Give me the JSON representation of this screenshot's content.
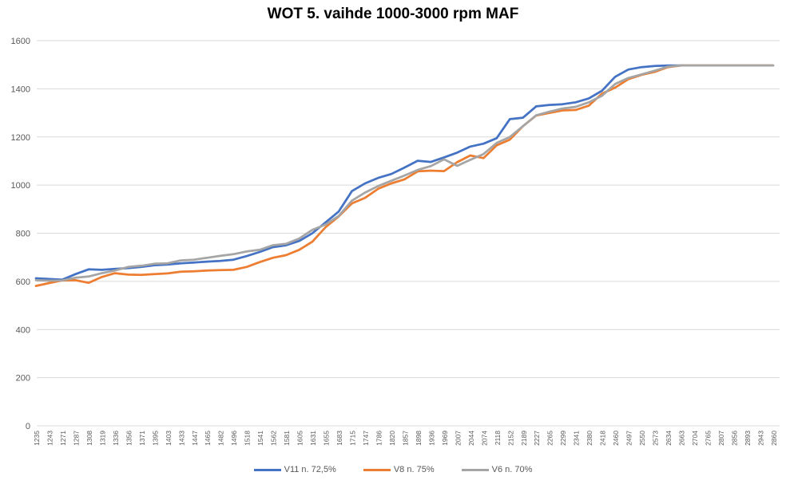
{
  "chart_data": {
    "type": "line",
    "title": "WOT 5. vaihde 1000-3000 rpm MAF",
    "xlabel": "",
    "ylabel": "",
    "ylim": [
      0,
      1600
    ],
    "ytick_step": 200,
    "grid": true,
    "legend_position": "bottom",
    "categories": [
      1235,
      1243,
      1271,
      1287,
      1308,
      1319,
      1336,
      1356,
      1371,
      1395,
      1403,
      1433,
      1447,
      1465,
      1482,
      1496,
      1518,
      1541,
      1562,
      1581,
      1605,
      1631,
      1655,
      1683,
      1715,
      1747,
      1786,
      1820,
      1857,
      1898,
      1936,
      1969,
      2007,
      2044,
      2074,
      2118,
      2152,
      2189,
      2227,
      2265,
      2299,
      2341,
      2380,
      2418,
      2460,
      2497,
      2550,
      2573,
      2634,
      2663,
      2704,
      2765,
      2807,
      2856,
      2893,
      2943,
      2860
    ],
    "series": [
      {
        "name": "V11 n. 72,5%",
        "color": "#4472C4",
        "values": [
          613,
          610,
          607,
          630,
          650,
          648,
          652,
          655,
          660,
          667,
          670,
          675,
          678,
          682,
          685,
          690,
          705,
          722,
          742,
          750,
          768,
          800,
          845,
          890,
          975,
          1007,
          1030,
          1046,
          1073,
          1101,
          1096,
          1115,
          1135,
          1160,
          1172,
          1195,
          1274,
          1280,
          1327,
          1333,
          1336,
          1344,
          1360,
          1392,
          1450,
          1480,
          1490,
          1495,
          1497,
          1497,
          1497,
          1497,
          1497,
          1497,
          1497,
          1497,
          1497
        ]
      },
      {
        "name": "V8 n. 75%",
        "color": "#ED7D31",
        "values": [
          581,
          593,
          604,
          605,
          594,
          618,
          634,
          628,
          627,
          630,
          633,
          640,
          642,
          645,
          647,
          648,
          660,
          680,
          698,
          709,
          731,
          765,
          825,
          870,
          924,
          947,
          985,
          1007,
          1024,
          1057,
          1060,
          1058,
          1095,
          1123,
          1112,
          1165,
          1189,
          1245,
          1289,
          1300,
          1310,
          1312,
          1330,
          1380,
          1405,
          1440,
          1458,
          1470,
          1490,
          1497,
          1497,
          1497,
          1497,
          1497,
          1497,
          1497,
          1497
        ]
      },
      {
        "name": "V6 n. 70%",
        "color": "#A5A5A5",
        "values": [
          605,
          603,
          604,
          615,
          620,
          634,
          645,
          660,
          665,
          673,
          675,
          687,
          690,
          698,
          706,
          713,
          724,
          731,
          750,
          756,
          778,
          814,
          836,
          872,
          935,
          969,
          996,
          1018,
          1040,
          1063,
          1079,
          1107,
          1080,
          1105,
          1129,
          1175,
          1200,
          1245,
          1290,
          1305,
          1318,
          1325,
          1344,
          1371,
          1420,
          1445,
          1460,
          1475,
          1492,
          1497,
          1497,
          1497,
          1497,
          1497,
          1497,
          1497,
          1497
        ]
      }
    ],
    "colors": {
      "grid": "#D9D9D9",
      "axis_text": "#595959",
      "title_text": "#000000"
    }
  }
}
